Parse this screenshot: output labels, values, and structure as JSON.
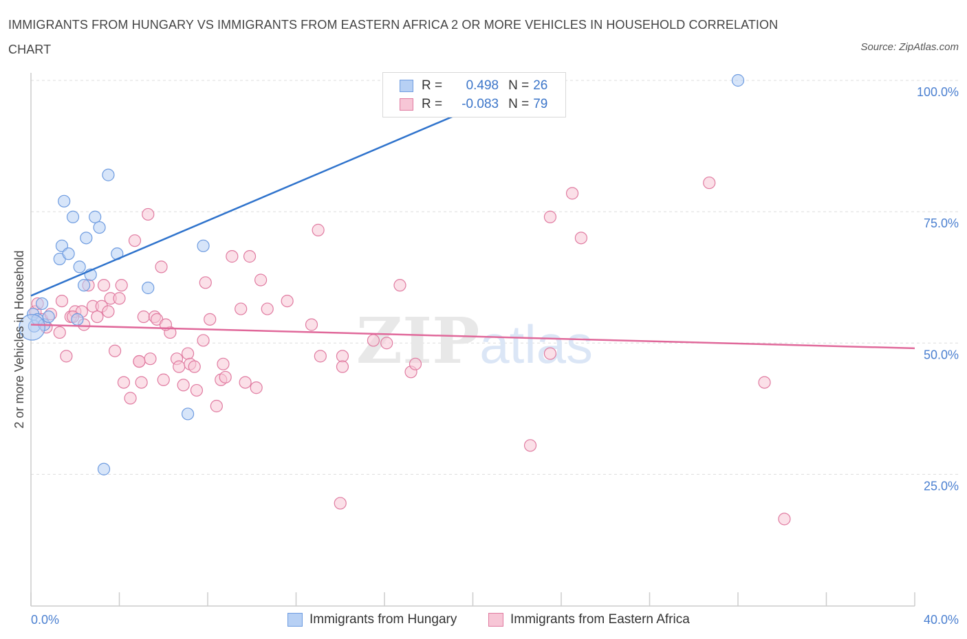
{
  "chart_data": {
    "type": "scatter",
    "title": "IMMIGRANTS FROM HUNGARY VS IMMIGRANTS FROM EASTERN AFRICA 2 OR MORE VEHICLES IN HOUSEHOLD CORRELATION CHART",
    "source": "Source: ZipAtlas.com",
    "xlabel": "",
    "ylabel": "2 or more Vehicles in Household",
    "xlim": [
      0,
      40
    ],
    "ylim": [
      0,
      100
    ],
    "x_tick_labels": [
      "0.0%",
      "40.0%"
    ],
    "y_ticks": [
      {
        "value": 100,
        "label": "100.0%"
      },
      {
        "value": 75,
        "label": "75.0%"
      },
      {
        "value": 50,
        "label": "50.0%"
      },
      {
        "value": 25,
        "label": "25.0%"
      }
    ],
    "watermark": "ZIPatlas",
    "legend": {
      "r_label": "R =",
      "n_label": "N =",
      "entries": [
        {
          "name": "Immigrants from Hungary",
          "r": "0.498",
          "n": "26",
          "color": "#6d9be0",
          "fill": "#b7d0f4"
        },
        {
          "name": "Immigrants from Eastern Africa",
          "r": "-0.083",
          "n": "79",
          "color": "#e07aa0",
          "fill": "#f7c6d6"
        }
      ]
    },
    "series": [
      {
        "name": "Immigrants from Hungary",
        "color": "#6d9be0",
        "trend": {
          "x": [
            0,
            40
          ],
          "y": [
            59.0,
            130.5
          ],
          "color": "#2f73cc"
        },
        "points": [
          [
            0.1,
            55.5
          ],
          [
            0.15,
            53.2
          ],
          [
            0.3,
            54.5
          ],
          [
            0.5,
            57.5
          ],
          [
            0.6,
            53.5
          ],
          [
            0.8,
            55.0
          ],
          [
            1.3,
            66.0
          ],
          [
            1.4,
            68.5
          ],
          [
            1.5,
            77.0
          ],
          [
            1.7,
            67.0
          ],
          [
            1.9,
            74.0
          ],
          [
            2.1,
            54.5
          ],
          [
            2.2,
            64.5
          ],
          [
            2.4,
            61.0
          ],
          [
            2.5,
            70.0
          ],
          [
            2.7,
            63.0
          ],
          [
            2.9,
            74.0
          ],
          [
            3.1,
            72.0
          ],
          [
            3.5,
            82.0
          ],
          [
            3.9,
            67.0
          ],
          [
            5.3,
            60.5
          ],
          [
            7.1,
            36.5
          ],
          [
            7.8,
            68.5
          ],
          [
            3.3,
            26.0
          ],
          [
            32.0,
            100.0
          ],
          [
            0.05,
            53.0
          ]
        ],
        "sizes": [
          1,
          1,
          1,
          1,
          1,
          1,
          1,
          1,
          1,
          1,
          1,
          1,
          1,
          1,
          1,
          1,
          1,
          1,
          1,
          1,
          1,
          1,
          1,
          1,
          1,
          2.2
        ]
      },
      {
        "name": "Immigrants from Eastern Africa",
        "color": "#e07aa0",
        "trend": {
          "x": [
            0,
            40
          ],
          "y": [
            53.5,
            49.0
          ],
          "color": "#e0689a"
        },
        "points": [
          [
            0.2,
            56.0
          ],
          [
            0.3,
            57.5
          ],
          [
            0.5,
            54.5
          ],
          [
            0.7,
            53.0
          ],
          [
            0.9,
            55.5
          ],
          [
            1.3,
            52.0
          ],
          [
            1.4,
            58.0
          ],
          [
            1.6,
            47.5
          ],
          [
            1.8,
            55.0
          ],
          [
            2.0,
            56.0
          ],
          [
            2.3,
            56.0
          ],
          [
            2.4,
            53.5
          ],
          [
            2.6,
            61.0
          ],
          [
            2.8,
            57.0
          ],
          [
            3.0,
            55.0
          ],
          [
            3.2,
            57.0
          ],
          [
            3.3,
            61.0
          ],
          [
            3.5,
            56.0
          ],
          [
            3.6,
            58.5
          ],
          [
            3.8,
            48.5
          ],
          [
            4.0,
            58.5
          ],
          [
            4.1,
            61.0
          ],
          [
            4.2,
            42.5
          ],
          [
            4.5,
            39.5
          ],
          [
            4.7,
            69.5
          ],
          [
            4.9,
            46.5
          ],
          [
            5.0,
            42.5
          ],
          [
            5.1,
            55.0
          ],
          [
            5.3,
            74.5
          ],
          [
            5.4,
            47.0
          ],
          [
            5.6,
            55.0
          ],
          [
            5.7,
            54.5
          ],
          [
            5.9,
            64.5
          ],
          [
            6.0,
            43.0
          ],
          [
            6.3,
            52.0
          ],
          [
            6.6,
            47.0
          ],
          [
            6.7,
            45.5
          ],
          [
            6.9,
            42.0
          ],
          [
            7.1,
            48.0
          ],
          [
            7.2,
            46.0
          ],
          [
            7.4,
            45.5
          ],
          [
            7.5,
            41.0
          ],
          [
            7.8,
            50.5
          ],
          [
            7.9,
            61.5
          ],
          [
            8.1,
            54.5
          ],
          [
            8.4,
            38.0
          ],
          [
            8.6,
            43.0
          ],
          [
            8.7,
            46.0
          ],
          [
            8.8,
            43.5
          ],
          [
            9.1,
            66.5
          ],
          [
            9.5,
            56.5
          ],
          [
            9.7,
            42.5
          ],
          [
            9.9,
            66.5
          ],
          [
            10.2,
            41.5
          ],
          [
            10.4,
            62.0
          ],
          [
            10.7,
            56.5
          ],
          [
            11.6,
            58.0
          ],
          [
            12.7,
            53.5
          ],
          [
            13.0,
            71.5
          ],
          [
            13.1,
            47.5
          ],
          [
            14.1,
            47.5
          ],
          [
            14.1,
            45.5
          ],
          [
            14.0,
            19.5
          ],
          [
            15.5,
            50.5
          ],
          [
            16.1,
            50.0
          ],
          [
            16.7,
            61.0
          ],
          [
            17.2,
            44.5
          ],
          [
            17.4,
            46.0
          ],
          [
            22.6,
            30.5
          ],
          [
            23.5,
            74.0
          ],
          [
            23.5,
            48.0
          ],
          [
            24.5,
            78.5
          ],
          [
            24.9,
            70.0
          ],
          [
            30.7,
            80.5
          ],
          [
            33.2,
            42.5
          ],
          [
            34.1,
            16.5
          ],
          [
            1.9,
            55.0
          ],
          [
            4.9,
            46.5
          ],
          [
            6.1,
            53.5
          ]
        ]
      }
    ]
  }
}
